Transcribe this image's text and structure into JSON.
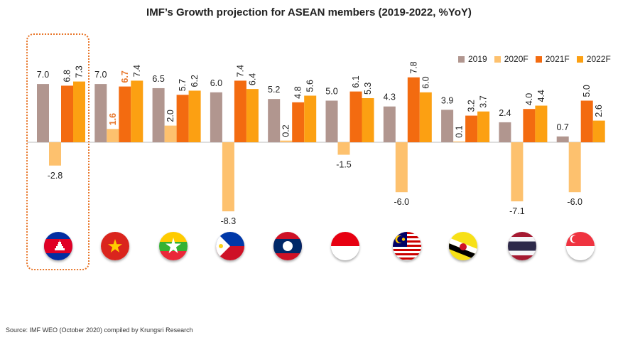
{
  "chart_data": {
    "type": "bar",
    "title": "IMF’s Growth projection for ASEAN members (2019-2022, %YoY)",
    "categories": [
      "Cambodia",
      "Vietnam",
      "Myanmar",
      "Philippines",
      "Laos",
      "Indonesia",
      "Malaysia",
      "Brunei",
      "Thailand",
      "Singapore"
    ],
    "series": [
      {
        "name": "2019",
        "color": "#b1968f",
        "values": [
          7.0,
          7.0,
          6.5,
          6.0,
          5.2,
          5.0,
          4.3,
          3.9,
          2.4,
          0.7
        ]
      },
      {
        "name": "2020F",
        "color": "#fdc16e",
        "values": [
          -2.8,
          1.6,
          2.0,
          -8.3,
          0.2,
          -1.5,
          -6.0,
          0.1,
          -7.1,
          -6.0
        ]
      },
      {
        "name": "2021F",
        "color": "#f36b10",
        "values": [
          6.8,
          6.7,
          5.7,
          7.4,
          4.8,
          6.1,
          7.8,
          3.2,
          4.0,
          5.0
        ]
      },
      {
        "name": "2022F",
        "color": "#fca012",
        "values": [
          7.3,
          7.4,
          6.2,
          6.4,
          5.6,
          5.3,
          6.0,
          3.7,
          4.4,
          2.6
        ]
      }
    ],
    "labels": [
      [
        "7.0",
        "-2.8",
        "6.8",
        "7.3"
      ],
      [
        "7.0",
        "1.6",
        "6.7",
        "7.4"
      ],
      [
        "6.5",
        "2.0",
        "5.7",
        "6.2"
      ],
      [
        "6.0",
        "-8.3",
        "7.4",
        "6.4"
      ],
      [
        "5.2",
        "0.2",
        "4.8",
        "5.6"
      ],
      [
        "5.0",
        "-1.5",
        "6.1",
        "5.3"
      ],
      [
        "4.3",
        "-6.0",
        "7.8",
        "6.0"
      ],
      [
        "3.9",
        "0.1",
        "3.2",
        "3.7"
      ],
      [
        "2.4",
        "-7.1",
        "4.0",
        "4.4"
      ],
      [
        "0.7",
        "-6.0",
        "5.0",
        "2.6"
      ]
    ],
    "highlight_labels": {
      "category_index": 1,
      "color": "#e8772b"
    },
    "highlight_box_category": "Cambodia",
    "legend_position": "top-right",
    "grid": false
  },
  "source": "Source: IMF WEO (October 2020) compiled by Krungsri Research",
  "flag_icons": [
    "cambodia-flag-icon",
    "vietnam-flag-icon",
    "myanmar-flag-icon",
    "philippines-flag-icon",
    "laos-flag-icon",
    "indonesia-flag-icon",
    "malaysia-flag-icon",
    "brunei-flag-icon",
    "thailand-flag-icon",
    "singapore-flag-icon"
  ]
}
